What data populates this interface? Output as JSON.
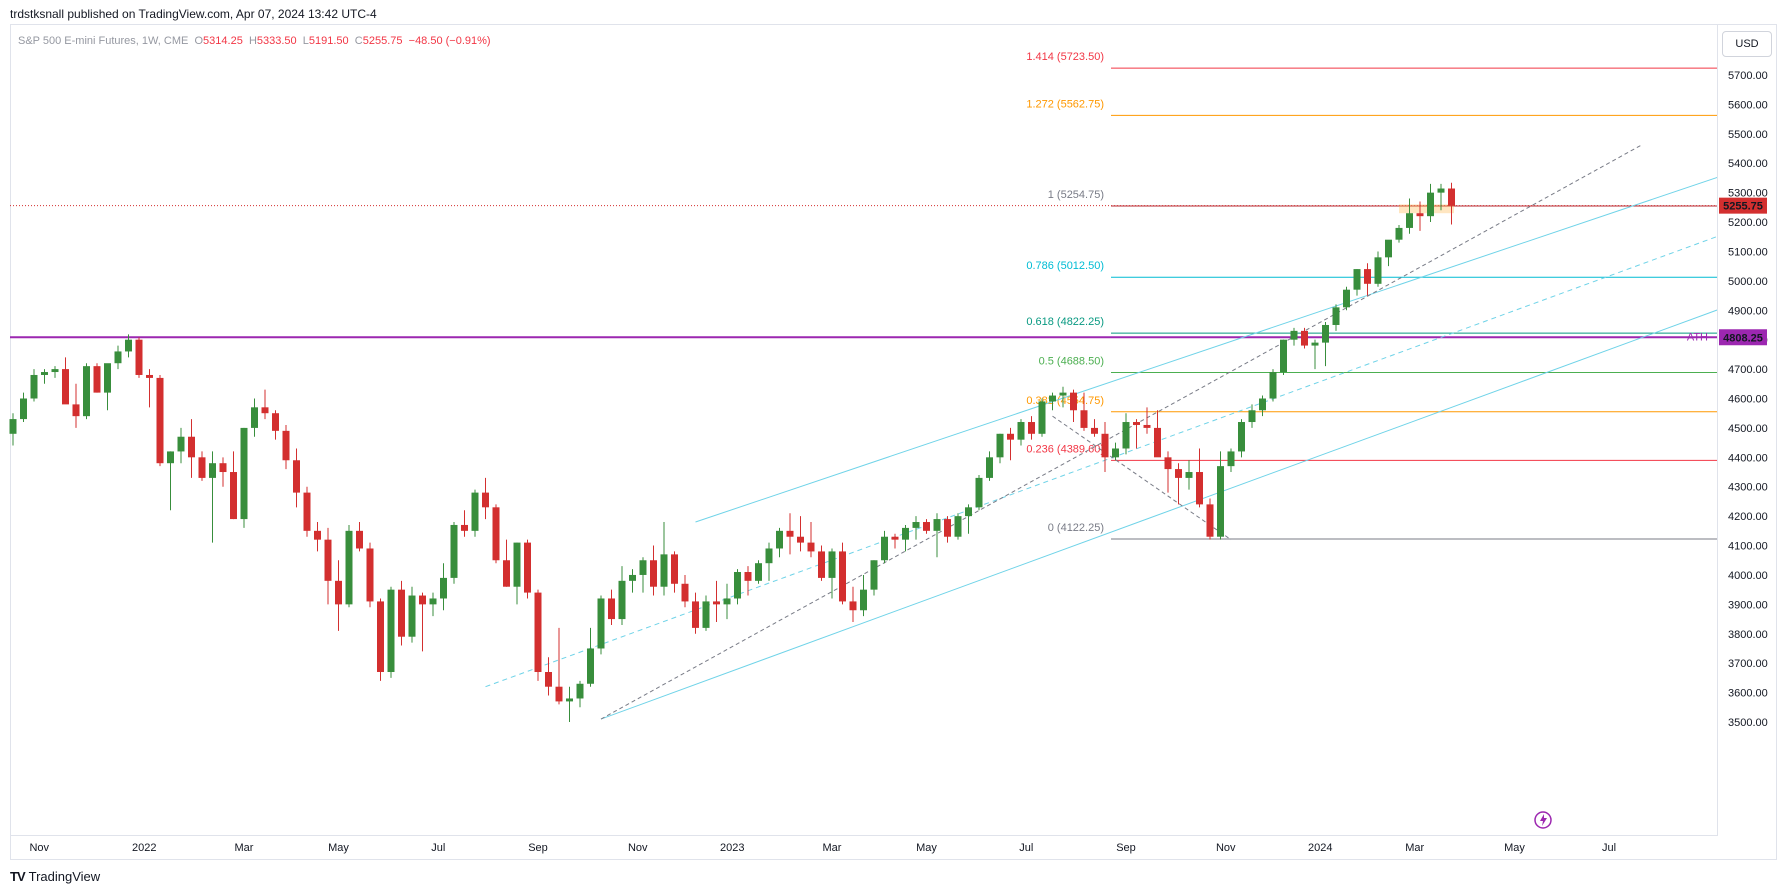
{
  "header": {
    "published": "trdstksnall published on TradingView.com, Apr 07, 2024 13:42 UTC-4"
  },
  "symbol": {
    "name": "S&P 500 E-mini Futures, 1W, CME",
    "open_label": "O",
    "open": "5314.25",
    "high_label": "H",
    "high": "5333.50",
    "low_label": "L",
    "low": "5191.50",
    "close_label": "C",
    "close": "5255.75",
    "change": "−48.50 (−0.91%)"
  },
  "currency": "USD",
  "footer": {
    "brand": "TradingView",
    "logo": "TV"
  },
  "colors": {
    "up": "#388e3c",
    "down": "#d32f2f",
    "ath_line": "#9c27b0",
    "channel": "#6fd3e8",
    "last_price": "#d32f2f"
  },
  "chart_data": {
    "type": "candlestick",
    "timeframe": "1W",
    "y_range": [
      3450,
      5850
    ],
    "y_ticks": [
      3500,
      3600,
      3700,
      3800,
      3900,
      4000,
      4100,
      4200,
      4300,
      4400,
      4500,
      4600,
      4700,
      4800,
      4900,
      5000,
      5100,
      5200,
      5300,
      5400,
      5500,
      5600,
      5700
    ],
    "x_labels": [
      {
        "label": "Nov",
        "bar": 2.5
      },
      {
        "label": "2022",
        "bar": 12.5
      },
      {
        "label": "Mar",
        "bar": 22
      },
      {
        "label": "May",
        "bar": 31
      },
      {
        "label": "Jul",
        "bar": 40.5
      },
      {
        "label": "Sep",
        "bar": 50
      },
      {
        "label": "Nov",
        "bar": 59.5
      },
      {
        "label": "2023",
        "bar": 68.5
      },
      {
        "label": "Mar",
        "bar": 78
      },
      {
        "label": "May",
        "bar": 87
      },
      {
        "label": "Jul",
        "bar": 96.5
      },
      {
        "label": "Sep",
        "bar": 106
      },
      {
        "label": "Nov",
        "bar": 115.5
      },
      {
        "label": "2024",
        "bar": 124.5
      },
      {
        "label": "Mar",
        "bar": 133.5
      },
      {
        "label": "May",
        "bar": 143
      },
      {
        "label": "Jul",
        "bar": 152
      }
    ],
    "last_price": {
      "value": 5255.75,
      "label": "5255.75"
    },
    "ath": {
      "value": 4808.25,
      "label": "4808.25",
      "tag": "ATH"
    },
    "fib_levels": [
      {
        "ratio": "1.414",
        "value": 5723.5,
        "label": "1.414 (5723.50)",
        "color": "#f23645"
      },
      {
        "ratio": "1.272",
        "value": 5562.75,
        "label": "1.272 (5562.75)",
        "color": "#ff9800"
      },
      {
        "ratio": "1",
        "value": 5254.75,
        "label": "1 (5254.75)",
        "color": "#787b86",
        "line": "#b22833"
      },
      {
        "ratio": "0.786",
        "value": 5012.5,
        "label": "0.786 (5012.50)",
        "color": "#00bcd4"
      },
      {
        "ratio": "0.618",
        "value": 4822.25,
        "label": "0.618 (4822.25)",
        "color": "#089981"
      },
      {
        "ratio": "0.5",
        "value": 4688.5,
        "label": "0.5 (4688.50)",
        "color": "#4caf50"
      },
      {
        "ratio": "0.382",
        "value": 4554.75,
        "label": "0.382 (4554.75)",
        "color": "#ff9800"
      },
      {
        "ratio": "0.236",
        "value": 4389.6,
        "label": "0.236 (4389.60)",
        "color": "#f23645"
      },
      {
        "ratio": "0",
        "value": 4122.25,
        "label": "0 (4122.25)",
        "color": "#787b86"
      }
    ],
    "channel_lines": [
      {
        "from": [
          56,
          3510
        ],
        "to": [
          163,
          4910
        ],
        "style": "solid"
      },
      {
        "from": [
          65,
          4180
        ],
        "to": [
          163,
          5360
        ],
        "style": "solid"
      },
      {
        "from": [
          45,
          3620
        ],
        "to": [
          163,
          5160
        ],
        "style": "dashed"
      }
    ],
    "trend_lines": [
      {
        "from": [
          56,
          3510
        ],
        "to": [
          155,
          5460
        ]
      },
      {
        "from": [
          99,
          4540
        ],
        "to": [
          116,
          4120
        ]
      }
    ],
    "candles": [
      [
        4480,
        4550,
        4440,
        4530
      ],
      [
        4530,
        4620,
        4520,
        4600
      ],
      [
        4600,
        4700,
        4590,
        4680
      ],
      [
        4680,
        4700,
        4650,
        4690
      ],
      [
        4690,
        4710,
        4670,
        4700
      ],
      [
        4700,
        4740,
        4600,
        4580
      ],
      [
        4580,
        4650,
        4500,
        4540
      ],
      [
        4540,
        4720,
        4530,
        4710
      ],
      [
        4710,
        4720,
        4620,
        4620
      ],
      [
        4620,
        4700,
        4560,
        4720
      ],
      [
        4720,
        4780,
        4700,
        4760
      ],
      [
        4760,
        4818,
        4740,
        4800
      ],
      [
        4800,
        4808,
        4670,
        4680
      ],
      [
        4680,
        4700,
        4570,
        4670
      ],
      [
        4670,
        4680,
        4370,
        4380
      ],
      [
        4380,
        4420,
        4220,
        4420
      ],
      [
        4420,
        4500,
        4380,
        4470
      ],
      [
        4470,
        4530,
        4330,
        4400
      ],
      [
        4400,
        4420,
        4320,
        4330
      ],
      [
        4330,
        4420,
        4110,
        4380
      ],
      [
        4380,
        4400,
        4300,
        4350
      ],
      [
        4350,
        4420,
        4190,
        4190
      ],
      [
        4190,
        4500,
        4160,
        4500
      ],
      [
        4500,
        4600,
        4470,
        4570
      ],
      [
        4570,
        4630,
        4530,
        4550
      ],
      [
        4550,
        4560,
        4460,
        4490
      ],
      [
        4490,
        4510,
        4360,
        4390
      ],
      [
        4390,
        4430,
        4230,
        4280
      ],
      [
        4280,
        4300,
        4130,
        4150
      ],
      [
        4150,
        4180,
        4080,
        4120
      ],
      [
        4120,
        4160,
        3900,
        3980
      ],
      [
        3980,
        4050,
        3810,
        3900
      ],
      [
        3900,
        4170,
        3890,
        4150
      ],
      [
        4150,
        4180,
        4080,
        4090
      ],
      [
        4090,
        4110,
        3890,
        3910
      ],
      [
        3910,
        3920,
        3640,
        3670
      ],
      [
        3670,
        3960,
        3650,
        3950
      ],
      [
        3950,
        3980,
        3760,
        3790
      ],
      [
        3790,
        3960,
        3770,
        3930
      ],
      [
        3930,
        3940,
        3740,
        3900
      ],
      [
        3900,
        3940,
        3860,
        3920
      ],
      [
        3920,
        4040,
        3880,
        3990
      ],
      [
        3990,
        4180,
        3970,
        4170
      ],
      [
        4170,
        4220,
        4130,
        4150
      ],
      [
        4150,
        4290,
        4130,
        4280
      ],
      [
        4280,
        4330,
        4190,
        4230
      ],
      [
        4230,
        4240,
        4040,
        4050
      ],
      [
        4050,
        4120,
        3960,
        3960
      ],
      [
        3960,
        4110,
        3900,
        4110
      ],
      [
        4110,
        4120,
        3920,
        3940
      ],
      [
        3940,
        3950,
        3640,
        3670
      ],
      [
        3670,
        3720,
        3590,
        3620
      ],
      [
        3620,
        3820,
        3560,
        3570
      ],
      [
        3570,
        3620,
        3500,
        3580
      ],
      [
        3580,
        3640,
        3550,
        3630
      ],
      [
        3630,
        3820,
        3620,
        3750
      ],
      [
        3750,
        3930,
        3730,
        3920
      ],
      [
        3920,
        3950,
        3830,
        3850
      ],
      [
        3850,
        4030,
        3830,
        3980
      ],
      [
        3980,
        4020,
        3940,
        4000
      ],
      [
        4000,
        4060,
        3940,
        4050
      ],
      [
        4050,
        4100,
        3930,
        3960
      ],
      [
        3960,
        4180,
        3930,
        4070
      ],
      [
        4070,
        4080,
        3940,
        3970
      ],
      [
        3970,
        4000,
        3890,
        3910
      ],
      [
        3910,
        3940,
        3800,
        3820
      ],
      [
        3820,
        3930,
        3810,
        3910
      ],
      [
        3910,
        3980,
        3840,
        3900
      ],
      [
        3900,
        3970,
        3850,
        3920
      ],
      [
        3920,
        4020,
        3900,
        4010
      ],
      [
        4010,
        4030,
        3930,
        3980
      ],
      [
        3980,
        4050,
        3970,
        4040
      ],
      [
        4040,
        4110,
        3980,
        4090
      ],
      [
        4090,
        4160,
        4060,
        4150
      ],
      [
        4150,
        4210,
        4070,
        4130
      ],
      [
        4130,
        4200,
        4080,
        4110
      ],
      [
        4110,
        4180,
        4060,
        4080
      ],
      [
        4080,
        4100,
        3980,
        3990
      ],
      [
        3990,
        4090,
        3920,
        4080
      ],
      [
        4080,
        4110,
        3900,
        3910
      ],
      [
        3910,
        3960,
        3840,
        3880
      ],
      [
        3880,
        4000,
        3860,
        3950
      ],
      [
        3950,
        4050,
        3930,
        4050
      ],
      [
        4050,
        4150,
        4040,
        4130
      ],
      [
        4130,
        4140,
        4090,
        4120
      ],
      [
        4120,
        4170,
        4080,
        4160
      ],
      [
        4160,
        4200,
        4120,
        4180
      ],
      [
        4180,
        4190,
        4140,
        4150
      ],
      [
        4150,
        4210,
        4060,
        4190
      ],
      [
        4190,
        4200,
        4110,
        4130
      ],
      [
        4130,
        4210,
        4120,
        4200
      ],
      [
        4200,
        4240,
        4140,
        4230
      ],
      [
        4230,
        4340,
        4220,
        4330
      ],
      [
        4330,
        4420,
        4320,
        4400
      ],
      [
        4400,
        4480,
        4380,
        4480
      ],
      [
        4480,
        4500,
        4390,
        4460
      ],
      [
        4460,
        4530,
        4440,
        4520
      ],
      [
        4520,
        4540,
        4460,
        4480
      ],
      [
        4480,
        4600,
        4470,
        4590
      ],
      [
        4590,
        4620,
        4560,
        4610
      ],
      [
        4610,
        4640,
        4570,
        4620
      ],
      [
        4620,
        4630,
        4520,
        4560
      ],
      [
        4560,
        4620,
        4490,
        4500
      ],
      [
        4500,
        4530,
        4470,
        4480
      ],
      [
        4480,
        4520,
        4350,
        4400
      ],
      [
        4400,
        4450,
        4390,
        4430
      ],
      [
        4430,
        4550,
        4410,
        4520
      ],
      [
        4520,
        4530,
        4430,
        4510
      ],
      [
        4510,
        4570,
        4480,
        4500
      ],
      [
        4500,
        4560,
        4420,
        4400
      ],
      [
        4400,
        4420,
        4280,
        4360
      ],
      [
        4360,
        4380,
        4240,
        4330
      ],
      [
        4330,
        4390,
        4290,
        4350
      ],
      [
        4350,
        4430,
        4230,
        4240
      ],
      [
        4240,
        4260,
        4120,
        4130
      ],
      [
        4130,
        4420,
        4120,
        4370
      ],
      [
        4370,
        4430,
        4350,
        4420
      ],
      [
        4420,
        4530,
        4400,
        4520
      ],
      [
        4520,
        4580,
        4500,
        4560
      ],
      [
        4560,
        4610,
        4540,
        4600
      ],
      [
        4600,
        4700,
        4590,
        4690
      ],
      [
        4690,
        4800,
        4680,
        4800
      ],
      [
        4800,
        4840,
        4780,
        4830
      ],
      [
        4830,
        4840,
        4770,
        4780
      ],
      [
        4780,
        4800,
        4700,
        4790
      ],
      [
        4790,
        4860,
        4710,
        4850
      ],
      [
        4850,
        4920,
        4830,
        4910
      ],
      [
        4910,
        4980,
        4900,
        4970
      ],
      [
        4970,
        5040,
        4950,
        5040
      ],
      [
        5040,
        5060,
        4950,
        4990
      ],
      [
        4990,
        5100,
        4980,
        5080
      ],
      [
        5080,
        5120,
        5050,
        5140
      ],
      [
        5140,
        5190,
        5130,
        5180
      ],
      [
        5180,
        5280,
        5160,
        5230
      ],
      [
        5230,
        5270,
        5170,
        5220
      ],
      [
        5220,
        5330,
        5200,
        5300
      ],
      [
        5300,
        5330,
        5240,
        5314
      ],
      [
        5314,
        5333.5,
        5191.5,
        5255.75
      ]
    ]
  }
}
